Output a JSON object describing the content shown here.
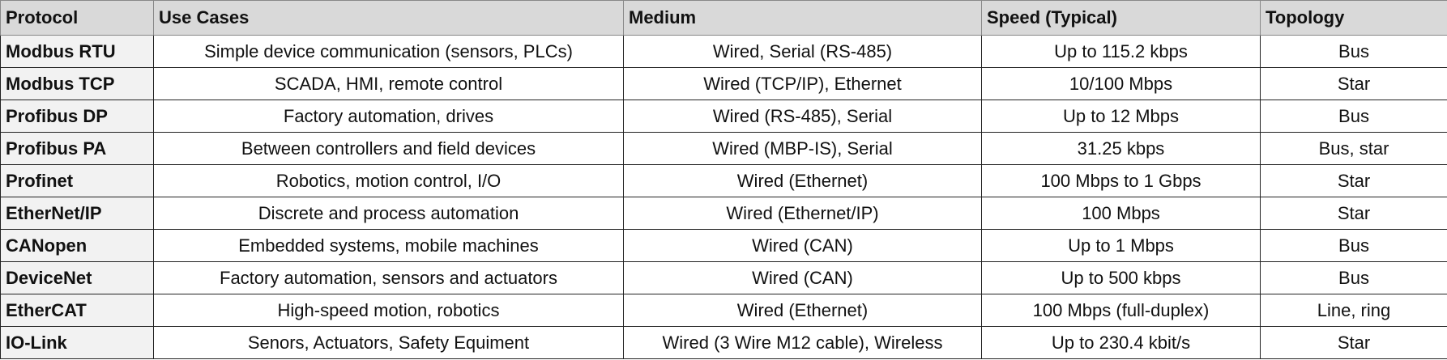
{
  "table": {
    "headers": [
      "Protocol",
      "Use Cases",
      "Medium",
      "Speed (Typical)",
      "Topology"
    ],
    "rows": [
      [
        "Modbus RTU",
        "Simple device communication (sensors, PLCs)",
        "Wired, Serial (RS-485)",
        "Up to 115.2 kbps",
        "Bus"
      ],
      [
        "Modbus TCP",
        "SCADA, HMI, remote control",
        "Wired (TCP/IP), Ethernet",
        "10/100 Mbps",
        "Star"
      ],
      [
        "Profibus DP",
        "Factory automation, drives",
        "Wired (RS-485), Serial",
        "Up to 12 Mbps",
        "Bus"
      ],
      [
        "Profibus PA",
        "Between controllers and field devices",
        "Wired (MBP-IS), Serial",
        "31.25 kbps",
        "Bus, star"
      ],
      [
        "Profinet",
        "Robotics, motion control, I/O",
        "Wired (Ethernet)",
        "100 Mbps to 1 Gbps",
        "Star"
      ],
      [
        "EtherNet/IP",
        "Discrete and process automation",
        "Wired (Ethernet/IP)",
        "100 Mbps",
        "Star"
      ],
      [
        "CANopen",
        "Embedded systems, mobile machines",
        "Wired (CAN)",
        "Up to 1 Mbps",
        "Bus"
      ],
      [
        "DeviceNet",
        "Factory automation, sensors and actuators",
        "Wired (CAN)",
        "Up to 500 kbps",
        "Bus"
      ],
      [
        "EtherCAT",
        "High-speed motion, robotics",
        "Wired (Ethernet)",
        "100 Mbps (full-duplex)",
        "Line, ring"
      ],
      [
        "IO-Link",
        "Senors, Actuators, Safety Equiment",
        "Wired (3 Wire M12 cable), Wireless",
        "Up to 230.4 kbit/s",
        "Star"
      ]
    ]
  }
}
